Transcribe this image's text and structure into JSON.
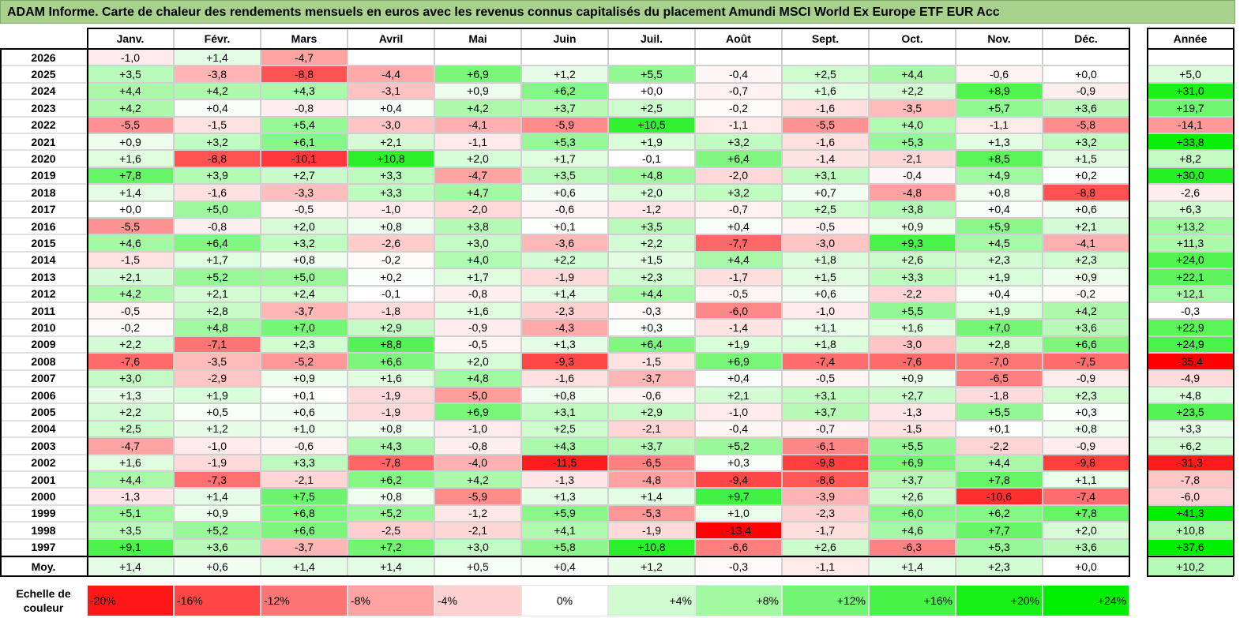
{
  "title": "ADAM Informe. Carte de chaleur des rendements mensuels en euros avec les revenus connus capitalisés du placement Amundi MSCI World Ex Europe ETF EUR Acc",
  "chart_data": {
    "type": "heatmap",
    "columns": [
      "Janv.",
      "Févr.",
      "Mars",
      "Avril",
      "Mai",
      "Juin",
      "Juil.",
      "Août",
      "Sept.",
      "Oct.",
      "Nov.",
      "Déc."
    ],
    "year_column": "Année",
    "rows": [
      {
        "label": "2026",
        "values": [
          "-1,0",
          "+1,4",
          "-4,7",
          "",
          "",
          "",
          "",
          "",
          "",
          "",
          "",
          ""
        ],
        "year": ""
      },
      {
        "label": "2025",
        "values": [
          "+3,5",
          "-3,8",
          "-8,8",
          "-4,4",
          "+6,9",
          "+1,2",
          "+5,5",
          "-0,4",
          "+2,5",
          "+4,4",
          "-0,6",
          "+0,0"
        ],
        "year": "+5,0"
      },
      {
        "label": "2024",
        "values": [
          "+4,4",
          "+4,2",
          "+4,3",
          "-3,1",
          "+0,9",
          "+6,2",
          "+0,0",
          "-0,7",
          "+1,6",
          "+2,2",
          "+8,9",
          "-0,9"
        ],
        "year": "+31,0"
      },
      {
        "label": "2023",
        "values": [
          "+4,2",
          "+0,4",
          "-0,8",
          "+0,4",
          "+4,2",
          "+3,7",
          "+2,5",
          "-0,2",
          "-1,6",
          "-3,5",
          "+5,7",
          "+3,6"
        ],
        "year": "+19,7"
      },
      {
        "label": "2022",
        "values": [
          "-5,5",
          "-1,5",
          "+5,4",
          "-3,0",
          "-4,1",
          "-5,9",
          "+10,5",
          "-1,1",
          "-5,5",
          "+4,0",
          "-1,1",
          "-5,8"
        ],
        "year": "-14,1"
      },
      {
        "label": "2021",
        "values": [
          "+0,9",
          "+3,2",
          "+6,1",
          "+2,1",
          "-1,1",
          "+5,3",
          "+1,9",
          "+3,2",
          "-1,6",
          "+5,3",
          "+1,3",
          "+3,2"
        ],
        "year": "+33,8"
      },
      {
        "label": "2020",
        "values": [
          "+1,6",
          "-8,8",
          "-10,1",
          "+10,8",
          "+2,0",
          "+1,7",
          "-0,1",
          "+6,4",
          "-1,4",
          "-2,1",
          "+8,5",
          "+1,5"
        ],
        "year": "+8,2"
      },
      {
        "label": "2019",
        "values": [
          "+7,8",
          "+3,9",
          "+2,7",
          "+3,3",
          "-4,7",
          "+3,5",
          "+4,8",
          "-2,0",
          "+3,1",
          "-0,4",
          "+4,9",
          "+0,2"
        ],
        "year": "+30,0"
      },
      {
        "label": "2018",
        "values": [
          "+1,4",
          "-1,6",
          "-3,3",
          "+3,3",
          "+4,7",
          "+0,6",
          "+2,0",
          "+3,2",
          "+0,7",
          "-4,8",
          "+0,8",
          "-8,8"
        ],
        "year": "-2,6"
      },
      {
        "label": "2017",
        "values": [
          "+0,0",
          "+5,0",
          "-0,5",
          "-1,0",
          "-2,0",
          "-0,6",
          "-1,2",
          "-0,7",
          "+2,5",
          "+3,8",
          "+0,4",
          "+0,6"
        ],
        "year": "+6,3"
      },
      {
        "label": "2016",
        "values": [
          "-5,5",
          "-0,8",
          "+2,0",
          "+0,8",
          "+3,8",
          "+0,1",
          "+3,5",
          "+0,4",
          "-0,5",
          "+0,9",
          "+5,9",
          "+2,1"
        ],
        "year": "+13,2"
      },
      {
        "label": "2015",
        "values": [
          "+4,6",
          "+6,4",
          "+3,2",
          "-2,6",
          "+3,0",
          "-3,6",
          "+2,2",
          "-7,7",
          "-3,0",
          "+9,3",
          "+4,5",
          "-4,1"
        ],
        "year": "+11,3"
      },
      {
        "label": "2014",
        "values": [
          "-1,5",
          "+1,7",
          "+0,8",
          "-0,2",
          "+4,0",
          "+2,2",
          "+1,5",
          "+4,4",
          "+1,8",
          "+2,6",
          "+2,3",
          "+2,3"
        ],
        "year": "+24,0"
      },
      {
        "label": "2013",
        "values": [
          "+2,1",
          "+5,2",
          "+5,0",
          "+0,2",
          "+1,7",
          "-1,9",
          "+2,3",
          "-1,7",
          "+1,5",
          "+3,3",
          "+1,9",
          "+0,9"
        ],
        "year": "+22,1"
      },
      {
        "label": "2012",
        "values": [
          "+4,2",
          "+2,1",
          "+2,4",
          "-0,1",
          "-0,8",
          "+1,4",
          "+4,4",
          "-0,5",
          "+0,6",
          "-2,2",
          "+0,4",
          "-0,2"
        ],
        "year": "+12,1"
      },
      {
        "label": "2011",
        "values": [
          "-0,5",
          "+2,8",
          "-3,7",
          "-1,8",
          "+1,6",
          "-2,3",
          "-0,3",
          "-6,0",
          "-1,0",
          "+5,5",
          "+1,9",
          "+4,2"
        ],
        "year": "-0,3"
      },
      {
        "label": "2010",
        "values": [
          "-0,2",
          "+4,8",
          "+7,0",
          "+2,9",
          "-0,9",
          "-4,3",
          "+0,3",
          "-1,4",
          "+1,1",
          "+1,6",
          "+7,0",
          "+3,6"
        ],
        "year": "+22,9"
      },
      {
        "label": "2009",
        "values": [
          "+2,2",
          "-7,1",
          "+2,3",
          "+8,8",
          "-0,5",
          "+1,3",
          "+6,4",
          "+1,9",
          "+1,8",
          "-3,0",
          "+2,8",
          "+6,6"
        ],
        "year": "+24,9"
      },
      {
        "label": "2008",
        "values": [
          "-7,6",
          "-3,5",
          "-5,2",
          "+6,6",
          "+2,0",
          "-9,3",
          "-1,5",
          "+6,9",
          "-7,4",
          "-7,6",
          "-7,0",
          "-7,5"
        ],
        "year": "-35,4"
      },
      {
        "label": "2007",
        "values": [
          "+3,0",
          "-2,9",
          "+0,9",
          "+1,6",
          "+4,8",
          "-1,6",
          "-3,7",
          "+0,4",
          "-0,5",
          "+0,9",
          "-6,5",
          "-0,9"
        ],
        "year": "-4,9"
      },
      {
        "label": "2006",
        "values": [
          "+1,3",
          "+1,9",
          "+0,1",
          "-1,9",
          "-5,0",
          "+0,8",
          "-0,6",
          "+2,1",
          "+3,1",
          "+2,7",
          "-1,8",
          "+2,3"
        ],
        "year": "+4,8"
      },
      {
        "label": "2005",
        "values": [
          "+2,2",
          "+0,5",
          "+0,6",
          "-1,9",
          "+6,9",
          "+3,1",
          "+2,9",
          "-1,0",
          "+3,7",
          "-1,3",
          "+5,5",
          "+0,3"
        ],
        "year": "+23,5"
      },
      {
        "label": "2004",
        "values": [
          "+2,5",
          "+1,2",
          "+1,0",
          "+0,8",
          "-1,0",
          "+2,5",
          "-2,1",
          "-0,4",
          "-0,7",
          "-1,5",
          "+0,1",
          "+0,8"
        ],
        "year": "+3,3"
      },
      {
        "label": "2003",
        "values": [
          "-4,7",
          "-1,0",
          "-0,6",
          "+4,3",
          "-0,8",
          "+4,3",
          "+3,7",
          "+5,2",
          "-6,1",
          "+5,5",
          "-2,2",
          "-0,9"
        ],
        "year": "+6,2"
      },
      {
        "label": "2002",
        "values": [
          "+1,6",
          "-1,9",
          "+3,3",
          "-7,8",
          "-4,0",
          "-11,5",
          "-6,5",
          "+0,3",
          "-9,8",
          "+6,9",
          "+4,4",
          "-9,8"
        ],
        "year": "-31,3"
      },
      {
        "label": "2001",
        "values": [
          "+4,4",
          "-7,3",
          "-2,1",
          "+6,2",
          "+4,2",
          "-1,3",
          "-4,8",
          "-9,4",
          "-8,6",
          "+3,7",
          "+7,8",
          "+1,1"
        ],
        "year": "-7,8"
      },
      {
        "label": "2000",
        "values": [
          "-1,3",
          "+1,4",
          "+7,5",
          "+0,8",
          "-5,9",
          "+1,3",
          "+1,4",
          "+9,7",
          "-3,9",
          "+2,6",
          "-10,6",
          "-7,4"
        ],
        "year": "-6,0"
      },
      {
        "label": "1999",
        "values": [
          "+5,1",
          "+0,9",
          "+6,8",
          "+5,2",
          "-1,2",
          "+5,9",
          "-5,3",
          "+1,0",
          "-2,3",
          "+6,0",
          "+6,2",
          "+7,8"
        ],
        "year": "+41,3"
      },
      {
        "label": "1998",
        "values": [
          "+3,5",
          "+5,2",
          "+6,6",
          "-2,5",
          "-2,1",
          "+4,1",
          "-1,9",
          "-13,4",
          "-1,7",
          "+4,6",
          "+7,7",
          "+2,0"
        ],
        "year": "+10,8"
      },
      {
        "label": "1997",
        "values": [
          "+9,1",
          "+3,6",
          "-3,7",
          "+7,2",
          "+3,0",
          "+5,8",
          "+10,8",
          "-6,6",
          "+2,6",
          "-6,3",
          "+5,3",
          "+3,6"
        ],
        "year": "+37,6"
      }
    ],
    "average": {
      "label": "Moy.",
      "values": [
        "+1,4",
        "+0,6",
        "+1,4",
        "+1,4",
        "+0,5",
        "+0,4",
        "+1,2",
        "-0,3",
        "-1,1",
        "+1,4",
        "+2,3",
        "+0,0"
      ],
      "year": "+10,2"
    },
    "scale": {
      "label": "Echelle de couleur",
      "steps": [
        {
          "text": "-20%",
          "value": -20,
          "align": "left"
        },
        {
          "text": "-16%",
          "value": -16,
          "align": "left"
        },
        {
          "text": "-12%",
          "value": -12,
          "align": "left"
        },
        {
          "text": "-8%",
          "value": -8,
          "align": "left"
        },
        {
          "text": "-4%",
          "value": -4,
          "align": "left"
        },
        {
          "text": "0%",
          "value": 0,
          "align": "center"
        },
        {
          "text": "+4%",
          "value": 4,
          "align": "right"
        },
        {
          "text": "+8%",
          "value": 8,
          "align": "right"
        },
        {
          "text": "+12%",
          "value": 12,
          "align": "right"
        },
        {
          "text": "+16%",
          "value": 16,
          "align": "right"
        },
        {
          "text": "+20%",
          "value": 20,
          "align": "right"
        },
        {
          "text": "+24%",
          "value": 24,
          "align": "right"
        }
      ]
    },
    "colors": {
      "negative": "#ff0000",
      "zero": "#ffffff",
      "positive": "#00ee00",
      "title_bg": "#a9d18e"
    }
  }
}
